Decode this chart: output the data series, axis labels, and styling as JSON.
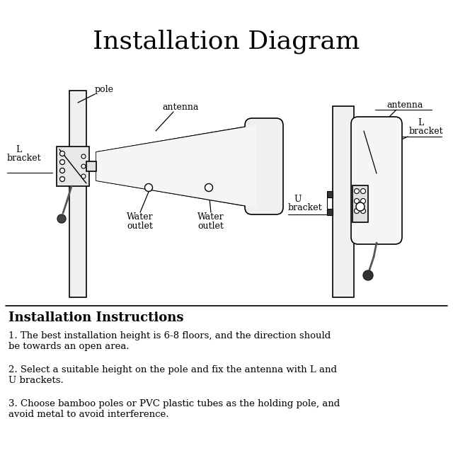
{
  "title": "Installation Diagram",
  "title_fontsize": 26,
  "bg_color": "#ffffff",
  "line_color": "#000000",
  "instruction_title": "Installation Instructions",
  "instructions": [
    "1. The best installation height is 6-8 floors, and the direction should\nbe towards an open area.",
    "2. Select a suitable height on the pole and fix the antenna with L and\nU brackets.",
    "3. Choose bamboo poles or PVC plastic tubes as the holding pole, and\navoid metal to avoid interference."
  ]
}
